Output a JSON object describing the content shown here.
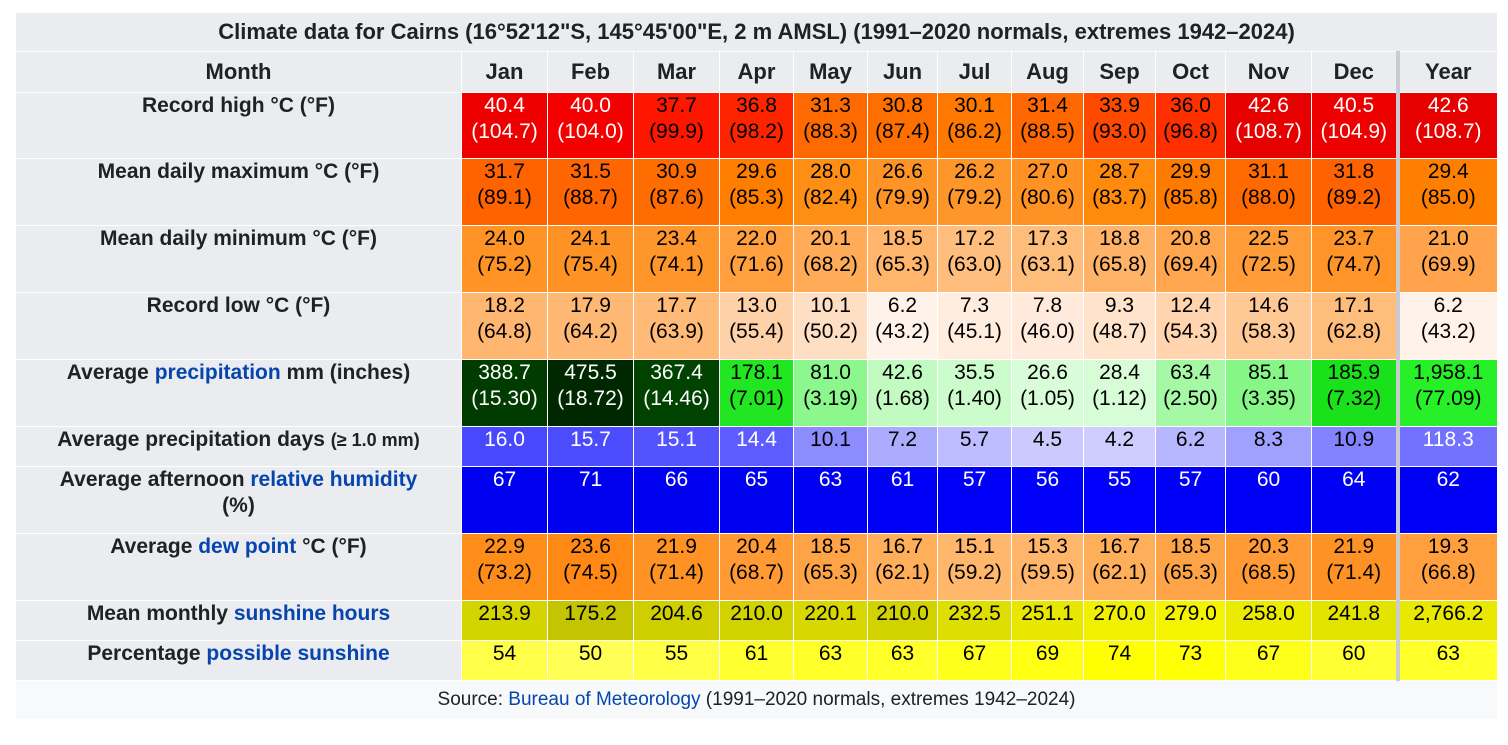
{
  "title": "Climate data for Cairns (16°52'12\"S, 145°45'00\"E, 2 m AMSL) (1991–2020 normals, extremes 1942–2024)",
  "header": {
    "month": "Month",
    "months": [
      "Jan",
      "Feb",
      "Mar",
      "Apr",
      "May",
      "Jun",
      "Jul",
      "Aug",
      "Sep",
      "Oct",
      "Nov",
      "Dec",
      "Year"
    ]
  },
  "rows": [
    {
      "name": "record-high",
      "label_pre": "Record high °C (°F)",
      "label_link": "",
      "label_post": "",
      "label_line2": "",
      "height": 66,
      "cells": [
        {
          "t1": "40.4",
          "t2": "(104.7)",
          "bg": "#ef0000",
          "fg": "#ffffff"
        },
        {
          "t1": "40.0",
          "t2": "(104.0)",
          "bg": "#f40000",
          "fg": "#ffffff"
        },
        {
          "t1": "37.7",
          "t2": "(99.9)",
          "bg": "#ff1600",
          "fg": "#000000"
        },
        {
          "t1": "36.8",
          "t2": "(98.2)",
          "bg": "#ff2400",
          "fg": "#000000"
        },
        {
          "t1": "31.3",
          "t2": "(88.3)",
          "bg": "#ff6a00",
          "fg": "#000000"
        },
        {
          "t1": "30.8",
          "t2": "(87.4)",
          "bg": "#ff6f00",
          "fg": "#000000"
        },
        {
          "t1": "30.1",
          "t2": "(86.2)",
          "bg": "#ff7800",
          "fg": "#000000"
        },
        {
          "t1": "31.4",
          "t2": "(88.5)",
          "bg": "#ff6800",
          "fg": "#000000"
        },
        {
          "t1": "33.9",
          "t2": "(93.0)",
          "bg": "#ff4900",
          "fg": "#000000"
        },
        {
          "t1": "36.0",
          "t2": "(96.8)",
          "bg": "#ff2f00",
          "fg": "#000000"
        },
        {
          "t1": "42.6",
          "t2": "(108.7)",
          "bg": "#e60000",
          "fg": "#ffffff"
        },
        {
          "t1": "40.5",
          "t2": "(104.9)",
          "bg": "#ef0000",
          "fg": "#ffffff"
        },
        {
          "t1": "42.6",
          "t2": "(108.7)",
          "bg": "#e60000",
          "fg": "#ffffff"
        }
      ]
    },
    {
      "name": "mean-daily-max",
      "label_pre": "Mean daily maximum °C (°F)",
      "label_link": "",
      "label_post": "",
      "label_line2": "",
      "height": 67,
      "cells": [
        {
          "t1": "31.7",
          "t2": "(89.1)",
          "bg": "#ff6300",
          "fg": "#000000"
        },
        {
          "t1": "31.5",
          "t2": "(88.7)",
          "bg": "#ff6500",
          "fg": "#000000"
        },
        {
          "t1": "30.9",
          "t2": "(87.6)",
          "bg": "#ff6d00",
          "fg": "#000000"
        },
        {
          "t1": "29.6",
          "t2": "(85.3)",
          "bg": "#ff7e00",
          "fg": "#000000"
        },
        {
          "t1": "28.0",
          "t2": "(82.4)",
          "bg": "#ff8e14",
          "fg": "#000000"
        },
        {
          "t1": "26.6",
          "t2": "(79.9)",
          "bg": "#ff9426",
          "fg": "#000000"
        },
        {
          "t1": "26.2",
          "t2": "(79.2)",
          "bg": "#ff962a",
          "fg": "#000000"
        },
        {
          "t1": "27.0",
          "t2": "(80.6)",
          "bg": "#ff9222",
          "fg": "#000000"
        },
        {
          "t1": "28.7",
          "t2": "(83.7)",
          "bg": "#ff8a0c",
          "fg": "#000000"
        },
        {
          "t1": "29.9",
          "t2": "(85.8)",
          "bg": "#ff7b00",
          "fg": "#000000"
        },
        {
          "t1": "31.1",
          "t2": "(88.0)",
          "bg": "#ff6a00",
          "fg": "#000000"
        },
        {
          "t1": "31.8",
          "t2": "(89.2)",
          "bg": "#ff6200",
          "fg": "#000000"
        },
        {
          "t1": "29.4",
          "t2": "(85.0)",
          "bg": "#ff8000",
          "fg": "#000000"
        }
      ]
    },
    {
      "name": "mean-daily-min",
      "label_pre": "Mean daily minimum °C (°F)",
      "label_link": "",
      "label_post": "",
      "label_line2": "",
      "height": 67,
      "cells": [
        {
          "t1": "24.0",
          "t2": "(75.2)",
          "bg": "#ff9326",
          "fg": "#000000"
        },
        {
          "t1": "24.1",
          "t2": "(75.4)",
          "bg": "#ff9224",
          "fg": "#000000"
        },
        {
          "t1": "23.4",
          "t2": "(74.1)",
          "bg": "#ff962c",
          "fg": "#000000"
        },
        {
          "t1": "22.0",
          "t2": "(71.6)",
          "bg": "#ff9f3e",
          "fg": "#000000"
        },
        {
          "t1": "20.1",
          "t2": "(68.2)",
          "bg": "#ffab58",
          "fg": "#000000"
        },
        {
          "t1": "18.5",
          "t2": "(65.3)",
          "bg": "#ffb56c",
          "fg": "#000000"
        },
        {
          "t1": "17.2",
          "t2": "(63.0)",
          "bg": "#ffbe7d",
          "fg": "#000000"
        },
        {
          "t1": "17.3",
          "t2": "(63.1)",
          "bg": "#ffbd7c",
          "fg": "#000000"
        },
        {
          "t1": "18.8",
          "t2": "(65.8)",
          "bg": "#ffb368",
          "fg": "#000000"
        },
        {
          "t1": "20.8",
          "t2": "(69.4)",
          "bg": "#ffa64f",
          "fg": "#000000"
        },
        {
          "t1": "22.5",
          "t2": "(72.5)",
          "bg": "#ff9c38",
          "fg": "#000000"
        },
        {
          "t1": "23.7",
          "t2": "(74.7)",
          "bg": "#ff9429",
          "fg": "#000000"
        },
        {
          "t1": "21.0",
          "t2": "(69.9)",
          "bg": "#ffa44c",
          "fg": "#000000"
        }
      ]
    },
    {
      "name": "record-low",
      "label_pre": "Record low °C (°F)",
      "label_link": "",
      "label_post": "",
      "label_line2": "",
      "height": 67,
      "cells": [
        {
          "t1": "18.2",
          "t2": "(64.8)",
          "bg": "#ffb670",
          "fg": "#000000"
        },
        {
          "t1": "17.9",
          "t2": "(64.2)",
          "bg": "#ffb874",
          "fg": "#000000"
        },
        {
          "t1": "17.7",
          "t2": "(63.9)",
          "bg": "#ffba77",
          "fg": "#000000"
        },
        {
          "t1": "13.0",
          "t2": "(55.4)",
          "bg": "#ffd1a8",
          "fg": "#000000"
        },
        {
          "t1": "10.1",
          "t2": "(50.2)",
          "bg": "#ffdfc4",
          "fg": "#000000"
        },
        {
          "t1": "6.2",
          "t2": "(43.2)",
          "bg": "#fff2e8",
          "fg": "#000000"
        },
        {
          "t1": "7.3",
          "t2": "(45.1)",
          "bg": "#ffede0",
          "fg": "#000000"
        },
        {
          "t1": "7.8",
          "t2": "(46.0)",
          "bg": "#ffeadb",
          "fg": "#000000"
        },
        {
          "t1": "9.3",
          "t2": "(48.7)",
          "bg": "#ffe3ca",
          "fg": "#000000"
        },
        {
          "t1": "12.4",
          "t2": "(54.3)",
          "bg": "#ffd4ae",
          "fg": "#000000"
        },
        {
          "t1": "14.6",
          "t2": "(58.3)",
          "bg": "#ffc996",
          "fg": "#000000"
        },
        {
          "t1": "17.1",
          "t2": "(62.8)",
          "bg": "#ffbd7c",
          "fg": "#000000"
        },
        {
          "t1": "6.2",
          "t2": "(43.2)",
          "bg": "#fff2e8",
          "fg": "#000000"
        }
      ]
    },
    {
      "name": "avg-precip",
      "label_pre": "Average ",
      "label_link": "precipitation",
      "label_post": " mm (inches)",
      "label_line2": "",
      "height": 67,
      "cells": [
        {
          "t1": "388.7",
          "t2": "(15.30)",
          "bg": "#003c00",
          "fg": "#ffffff"
        },
        {
          "t1": "475.5",
          "t2": "(18.72)",
          "bg": "#002800",
          "fg": "#ffffff"
        },
        {
          "t1": "367.4",
          "t2": "(14.46)",
          "bg": "#004200",
          "fg": "#ffffff"
        },
        {
          "t1": "178.1",
          "t2": "(7.01)",
          "bg": "#22e622",
          "fg": "#000000"
        },
        {
          "t1": "81.0",
          "t2": "(3.19)",
          "bg": "#8cf78c",
          "fg": "#000000"
        },
        {
          "t1": "42.6",
          "t2": "(1.68)",
          "bg": "#c2fbc2",
          "fg": "#000000"
        },
        {
          "t1": "35.5",
          "t2": "(1.40)",
          "bg": "#ccfccc",
          "fg": "#000000"
        },
        {
          "t1": "26.6",
          "t2": "(1.05)",
          "bg": "#d8fdd8",
          "fg": "#000000"
        },
        {
          "t1": "28.4",
          "t2": "(1.12)",
          "bg": "#d6fdd6",
          "fg": "#000000"
        },
        {
          "t1": "63.4",
          "t2": "(2.50)",
          "bg": "#a5f9a5",
          "fg": "#000000"
        },
        {
          "t1": "85.1",
          "t2": "(3.35)",
          "bg": "#86f686",
          "fg": "#000000"
        },
        {
          "t1": "185.9",
          "t2": "(7.32)",
          "bg": "#1ae21a",
          "fg": "#000000"
        },
        {
          "t1": "1,958.1",
          "t2": "(77.09)",
          "bg": "#28f028",
          "fg": "#000000"
        }
      ]
    },
    {
      "name": "avg-precip-days",
      "label_pre": "Average precipitation days ",
      "label_link": "",
      "label_post": "",
      "label_small": "(≥ 1.0 mm)",
      "label_line2": "",
      "height": 40,
      "cells": [
        {
          "t1": "16.0",
          "t2": "",
          "bg": "#4848ff",
          "fg": "#ffffff"
        },
        {
          "t1": "15.7",
          "t2": "",
          "bg": "#4c4cff",
          "fg": "#ffffff"
        },
        {
          "t1": "15.1",
          "t2": "",
          "bg": "#5454ff",
          "fg": "#ffffff"
        },
        {
          "t1": "14.4",
          "t2": "",
          "bg": "#5c5cff",
          "fg": "#ffffff"
        },
        {
          "t1": "10.1",
          "t2": "",
          "bg": "#8c8cff",
          "fg": "#000000"
        },
        {
          "t1": "7.2",
          "t2": "",
          "bg": "#acacff",
          "fg": "#000000"
        },
        {
          "t1": "5.7",
          "t2": "",
          "bg": "#bdbdff",
          "fg": "#000000"
        },
        {
          "t1": "4.5",
          "t2": "",
          "bg": "#cacaff",
          "fg": "#000000"
        },
        {
          "t1": "4.2",
          "t2": "",
          "bg": "#cdcdff",
          "fg": "#000000"
        },
        {
          "t1": "6.2",
          "t2": "",
          "bg": "#b7b7ff",
          "fg": "#000000"
        },
        {
          "t1": "8.3",
          "t2": "",
          "bg": "#a0a0ff",
          "fg": "#000000"
        },
        {
          "t1": "10.9",
          "t2": "",
          "bg": "#8383ff",
          "fg": "#000000"
        },
        {
          "t1": "118.3",
          "t2": "",
          "bg": "#7272ff",
          "fg": "#ffffff"
        }
      ]
    },
    {
      "name": "avg-humidity",
      "label_pre": "Average afternoon ",
      "label_link": "relative humidity",
      "label_post": "",
      "label_line2": "(%)",
      "height": 67,
      "cells": [
        {
          "t1": "67",
          "t2": "",
          "bg": "#0000f1",
          "fg": "#ffffff"
        },
        {
          "t1": "71",
          "t2": "",
          "bg": "#0000ee",
          "fg": "#ffffff"
        },
        {
          "t1": "66",
          "t2": "",
          "bg": "#0000f2",
          "fg": "#ffffff"
        },
        {
          "t1": "65",
          "t2": "",
          "bg": "#0000f3",
          "fg": "#ffffff"
        },
        {
          "t1": "63",
          "t2": "",
          "bg": "#0000f5",
          "fg": "#ffffff"
        },
        {
          "t1": "61",
          "t2": "",
          "bg": "#0000f7",
          "fg": "#ffffff"
        },
        {
          "t1": "57",
          "t2": "",
          "bg": "#0000fa",
          "fg": "#ffffff"
        },
        {
          "t1": "56",
          "t2": "",
          "bg": "#0000fb",
          "fg": "#ffffff"
        },
        {
          "t1": "55",
          "t2": "",
          "bg": "#0000fc",
          "fg": "#ffffff"
        },
        {
          "t1": "57",
          "t2": "",
          "bg": "#0000fa",
          "fg": "#ffffff"
        },
        {
          "t1": "60",
          "t2": "",
          "bg": "#0000f8",
          "fg": "#ffffff"
        },
        {
          "t1": "64",
          "t2": "",
          "bg": "#0000f4",
          "fg": "#ffffff"
        },
        {
          "t1": "62",
          "t2": "",
          "bg": "#0000f6",
          "fg": "#ffffff"
        }
      ]
    },
    {
      "name": "avg-dew-point",
      "label_pre": "Average ",
      "label_link": "dew point",
      "label_post": " °C (°F)",
      "label_line2": "",
      "height": 67,
      "cells": [
        {
          "t1": "22.9",
          "t2": "(73.2)",
          "bg": "#ff8d1a",
          "fg": "#000000"
        },
        {
          "t1": "23.6",
          "t2": "(74.5)",
          "bg": "#ff8914",
          "fg": "#000000"
        },
        {
          "t1": "21.9",
          "t2": "(71.4)",
          "bg": "#ff9224",
          "fg": "#000000"
        },
        {
          "t1": "20.4",
          "t2": "(68.7)",
          "bg": "#ff9a34",
          "fg": "#000000"
        },
        {
          "t1": "18.5",
          "t2": "(65.3)",
          "bg": "#ffa446",
          "fg": "#000000"
        },
        {
          "t1": "16.7",
          "t2": "(62.1)",
          "bg": "#ffae5a",
          "fg": "#000000"
        },
        {
          "t1": "15.1",
          "t2": "(59.2)",
          "bg": "#ffb76c",
          "fg": "#000000"
        },
        {
          "t1": "15.3",
          "t2": "(59.5)",
          "bg": "#ffb66a",
          "fg": "#000000"
        },
        {
          "t1": "16.7",
          "t2": "(62.1)",
          "bg": "#ffae5a",
          "fg": "#000000"
        },
        {
          "t1": "18.5",
          "t2": "(65.3)",
          "bg": "#ffa446",
          "fg": "#000000"
        },
        {
          "t1": "20.3",
          "t2": "(68.5)",
          "bg": "#ff9a34",
          "fg": "#000000"
        },
        {
          "t1": "21.9",
          "t2": "(71.4)",
          "bg": "#ff9224",
          "fg": "#000000"
        },
        {
          "t1": "19.3",
          "t2": "(66.8)",
          "bg": "#ff9f3e",
          "fg": "#000000"
        }
      ]
    },
    {
      "name": "sunshine-hours",
      "label_pre": "Mean monthly ",
      "label_link": "sunshine hours",
      "label_post": "",
      "label_line2": "",
      "height": 40,
      "cells": [
        {
          "t1": "213.9",
          "t2": "",
          "bg": "#d4d400",
          "fg": "#000000"
        },
        {
          "t1": "175.2",
          "t2": "",
          "bg": "#c4c400",
          "fg": "#000000"
        },
        {
          "t1": "204.6",
          "t2": "",
          "bg": "#cfcf00",
          "fg": "#000000"
        },
        {
          "t1": "210.0",
          "t2": "",
          "bg": "#d2d200",
          "fg": "#000000"
        },
        {
          "t1": "220.1",
          "t2": "",
          "bg": "#d8d800",
          "fg": "#000000"
        },
        {
          "t1": "210.0",
          "t2": "",
          "bg": "#d2d200",
          "fg": "#000000"
        },
        {
          "t1": "232.5",
          "t2": "",
          "bg": "#dede00",
          "fg": "#000000"
        },
        {
          "t1": "251.1",
          "t2": "",
          "bg": "#e7e700",
          "fg": "#000000"
        },
        {
          "t1": "270.0",
          "t2": "",
          "bg": "#f0f000",
          "fg": "#000000"
        },
        {
          "t1": "279.0",
          "t2": "",
          "bg": "#f4f400",
          "fg": "#000000"
        },
        {
          "t1": "258.0",
          "t2": "",
          "bg": "#ebeb00",
          "fg": "#000000"
        },
        {
          "t1": "241.8",
          "t2": "",
          "bg": "#e3e300",
          "fg": "#000000"
        },
        {
          "t1": "2,766.2",
          "t2": "",
          "bg": "#e8e800",
          "fg": "#000000"
        }
      ]
    },
    {
      "name": "possible-sunshine",
      "label_pre": "Percentage ",
      "label_link": "possible sunshine",
      "label_post": "",
      "label_line2": "",
      "height": 40,
      "cells": [
        {
          "t1": "54",
          "t2": "",
          "bg": "#ffff4a",
          "fg": "#000000"
        },
        {
          "t1": "50",
          "t2": "",
          "bg": "#ffff56",
          "fg": "#000000"
        },
        {
          "t1": "55",
          "t2": "",
          "bg": "#ffff46",
          "fg": "#000000"
        },
        {
          "t1": "61",
          "t2": "",
          "bg": "#ffff30",
          "fg": "#000000"
        },
        {
          "t1": "63",
          "t2": "",
          "bg": "#ffff2a",
          "fg": "#000000"
        },
        {
          "t1": "63",
          "t2": "",
          "bg": "#ffff2a",
          "fg": "#000000"
        },
        {
          "t1": "67",
          "t2": "",
          "bg": "#ffff1c",
          "fg": "#000000"
        },
        {
          "t1": "69",
          "t2": "",
          "bg": "#ffff14",
          "fg": "#000000"
        },
        {
          "t1": "74",
          "t2": "",
          "bg": "#ffff02",
          "fg": "#000000"
        },
        {
          "t1": "73",
          "t2": "",
          "bg": "#ffff06",
          "fg": "#000000"
        },
        {
          "t1": "67",
          "t2": "",
          "bg": "#ffff1c",
          "fg": "#000000"
        },
        {
          "t1": "60",
          "t2": "",
          "bg": "#ffff34",
          "fg": "#000000"
        },
        {
          "t1": "63",
          "t2": "",
          "bg": "#ffff2a",
          "fg": "#000000"
        }
      ]
    }
  ],
  "source": {
    "prefix": "Source: ",
    "link": "Bureau of Meteorology",
    "suffix": " (1991–2020 normals, extremes 1942–2024)"
  },
  "colors": {
    "link": "#0645ad",
    "header_bg": "#eaecf0"
  }
}
